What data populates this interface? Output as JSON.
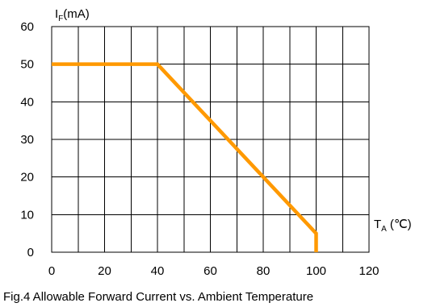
{
  "chart_data": {
    "type": "line",
    "title": "Fig.4 Allowable Forward Current vs. Ambient Temperature",
    "ylabel_main": "I",
    "ylabel_sub": "F",
    "ylabel_unit": "(mA)",
    "xlabel_main": "T",
    "xlabel_sub": "A",
    "xlabel_unit": "(℃)",
    "xlim": [
      0,
      120
    ],
    "ylim": [
      0,
      60
    ],
    "xticks": [
      0,
      20,
      40,
      60,
      80,
      100,
      120
    ],
    "yticks": [
      0,
      10,
      20,
      30,
      40,
      50,
      60
    ],
    "x_tick_labels": [
      "0",
      "20",
      "40",
      "60",
      "80",
      "100",
      "120"
    ],
    "y_tick_labels": [
      "0",
      "10",
      "20",
      "30",
      "40",
      "50",
      "60"
    ],
    "grid": true,
    "series": [
      {
        "color": "#ff9900",
        "x": [
          0,
          40,
          100,
          100
        ],
        "y": [
          50,
          50,
          5,
          0
        ]
      }
    ]
  }
}
